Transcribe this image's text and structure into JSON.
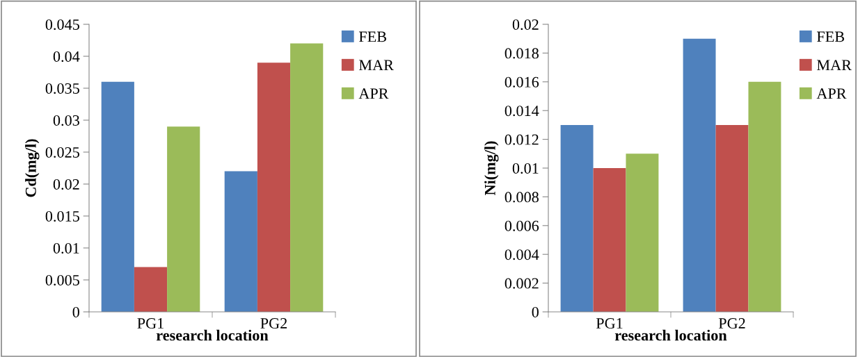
{
  "chart_data": [
    {
      "type": "bar",
      "ylabel": "Cd(mg/l)",
      "xlabel": "research location",
      "categories": [
        "PG1",
        "PG2"
      ],
      "series": [
        {
          "name": "FEB",
          "color": "#4f81bd",
          "values": [
            0.036,
            0.022
          ]
        },
        {
          "name": "MAR",
          "color": "#c0504d",
          "values": [
            0.007,
            0.039
          ]
        },
        {
          "name": "APR",
          "color": "#9bbb59",
          "values": [
            0.029,
            0.042
          ]
        }
      ],
      "ylim": [
        0,
        0.045
      ],
      "yticks": [
        0,
        0.005,
        0.01,
        0.015,
        0.02,
        0.025,
        0.03,
        0.035,
        0.04,
        0.045
      ],
      "grid": false,
      "legend": "top right"
    },
    {
      "type": "bar",
      "ylabel": "Ni(mg/l)",
      "xlabel": "research location",
      "categories": [
        "PG1",
        "PG2"
      ],
      "series": [
        {
          "name": "FEB",
          "color": "#4f81bd",
          "values": [
            0.013,
            0.019
          ]
        },
        {
          "name": "MAR",
          "color": "#c0504d",
          "values": [
            0.01,
            0.013
          ]
        },
        {
          "name": "APR",
          "color": "#9bbb59",
          "values": [
            0.011,
            0.016
          ]
        }
      ],
      "ylim": [
        0,
        0.02
      ],
      "yticks": [
        0,
        0.002,
        0.004,
        0.006,
        0.008,
        0.01,
        0.012,
        0.014,
        0.016,
        0.018,
        0.02
      ],
      "grid": false,
      "legend": "top right"
    }
  ]
}
